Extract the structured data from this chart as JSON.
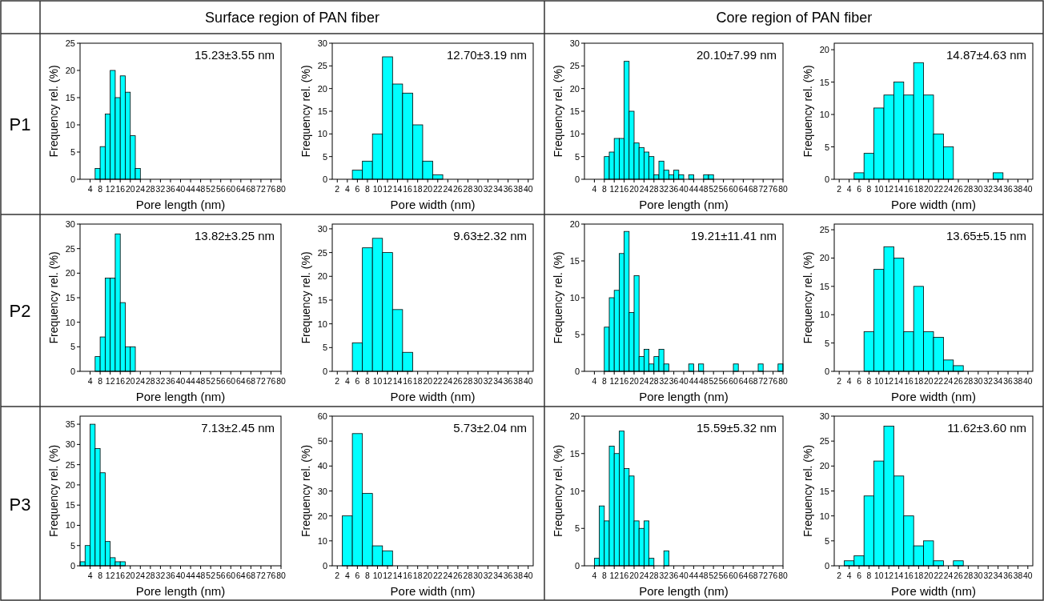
{
  "chart_data": [
    {
      "type": "histogram",
      "title": "Surface region of PAN fiber",
      "subtitle": "P1",
      "xlabel": "Pore length (nm)",
      "ylabel": "Frequency rel. (%)",
      "annotations": [
        "15.23±3.55 nm"
      ],
      "color": "#00ffff",
      "bins": [
        6,
        8,
        10,
        12,
        14,
        16,
        18,
        20,
        22,
        24
      ],
      "values": [
        2,
        6,
        12,
        20,
        15,
        19,
        16,
        8,
        2
      ],
      "xlim": [
        0,
        80
      ],
      "xticks": [
        4,
        8,
        12,
        16,
        20,
        24,
        28,
        32,
        36,
        40,
        44,
        48,
        52,
        56,
        60,
        64,
        68,
        72,
        76,
        80
      ],
      "ylim": [
        0,
        25
      ],
      "yticks": [
        0,
        5,
        10,
        15,
        20,
        25
      ]
    },
    {
      "type": "histogram",
      "xlabel": "Pore width (nm)",
      "ylabel": "Frequency rel. (%)",
      "annotations": [
        "12.70±3.19 nm"
      ],
      "color": "#00ffff",
      "bins": [
        5,
        7,
        9,
        11,
        13,
        15,
        17,
        19,
        21,
        23
      ],
      "values": [
        2,
        4,
        10,
        27,
        21,
        19,
        12,
        4,
        1
      ],
      "xlim": [
        1,
        41
      ],
      "xticks": [
        2,
        4,
        6,
        8,
        10,
        12,
        14,
        16,
        18,
        20,
        22,
        24,
        26,
        28,
        30,
        32,
        34,
        36,
        38,
        40
      ],
      "ylim": [
        0,
        30
      ],
      "yticks": [
        0,
        5,
        10,
        15,
        20,
        25,
        30
      ]
    },
    {
      "type": "histogram",
      "title": "Core region of PAN fiber",
      "xlabel": "Pore length (nm)",
      "ylabel": "Frequency rel. (%)",
      "annotations": [
        "20.10±7.99 nm"
      ],
      "color": "#00ffff",
      "bins": [
        8,
        10,
        12,
        14,
        16,
        18,
        20,
        22,
        24,
        26,
        28,
        30,
        32,
        34,
        36,
        38,
        40,
        42,
        44,
        46,
        48,
        50,
        52
      ],
      "values": [
        5,
        6,
        9,
        9,
        26,
        15,
        8,
        7,
        6,
        5,
        1,
        4,
        2,
        1,
        2,
        1,
        0,
        1,
        0,
        0,
        1,
        1
      ],
      "xlim": [
        0,
        80
      ],
      "xticks": [
        4,
        8,
        12,
        16,
        20,
        24,
        28,
        32,
        36,
        40,
        44,
        48,
        52,
        56,
        60,
        64,
        68,
        72,
        76,
        80
      ],
      "ylim": [
        0,
        30
      ],
      "yticks": [
        0,
        5,
        10,
        15,
        20,
        25,
        30
      ]
    },
    {
      "type": "histogram",
      "xlabel": "Pore width (nm)",
      "ylabel": "Frequency rel. (%)",
      "annotations": [
        "14.87±4.63 nm"
      ],
      "color": "#00ffff",
      "bins": [
        5,
        7,
        9,
        11,
        13,
        15,
        17,
        19,
        21,
        23,
        25,
        27,
        29,
        31,
        33,
        35
      ],
      "values": [
        1,
        4,
        11,
        13,
        15,
        13,
        18,
        13,
        7,
        5,
        0,
        0,
        0,
        0,
        1
      ],
      "xlim": [
        1,
        41
      ],
      "xticks": [
        2,
        4,
        6,
        8,
        10,
        12,
        14,
        16,
        18,
        20,
        22,
        24,
        26,
        28,
        30,
        32,
        34,
        36,
        38,
        40
      ],
      "ylim": [
        0,
        21
      ],
      "yticks": [
        0,
        5,
        10,
        15,
        20
      ]
    },
    {
      "type": "histogram",
      "subtitle": "P2",
      "xlabel": "Pore length (nm)",
      "ylabel": "Frequency rel. (%)",
      "annotations": [
        "13.82±3.25 nm"
      ],
      "color": "#00ffff",
      "bins": [
        6,
        8,
        10,
        12,
        14,
        16,
        18,
        20,
        22
      ],
      "values": [
        3,
        7,
        19,
        19,
        28,
        14,
        5,
        5
      ],
      "xlim": [
        0,
        80
      ],
      "xticks": [
        4,
        8,
        12,
        16,
        20,
        24,
        28,
        32,
        36,
        40,
        44,
        48,
        52,
        56,
        60,
        64,
        68,
        72,
        76,
        80
      ],
      "ylim": [
        0,
        30
      ],
      "yticks": [
        0,
        5,
        10,
        15,
        20,
        25,
        30
      ]
    },
    {
      "type": "histogram",
      "xlabel": "Pore width (nm)",
      "ylabel": "Frequency rel. (%)",
      "annotations": [
        "9.63±2.32 nm"
      ],
      "color": "#00ffff",
      "bins": [
        5,
        7,
        9,
        11,
        13,
        15,
        17
      ],
      "values": [
        6,
        26,
        28,
        25,
        13,
        4
      ],
      "xlim": [
        1,
        41
      ],
      "xticks": [
        2,
        4,
        6,
        8,
        10,
        12,
        14,
        16,
        18,
        20,
        22,
        24,
        26,
        28,
        30,
        32,
        34,
        36,
        38,
        40
      ],
      "ylim": [
        0,
        31
      ],
      "yticks": [
        0,
        5,
        10,
        15,
        20,
        25,
        30
      ]
    },
    {
      "type": "histogram",
      "xlabel": "Pore length (nm)",
      "ylabel": "Frequency rel. (%)",
      "annotations": [
        "19.21±11.41 nm"
      ],
      "color": "#00ffff",
      "bins": [
        8,
        10,
        12,
        14,
        16,
        18,
        20,
        22,
        24,
        26,
        28,
        30,
        32,
        34,
        36,
        38,
        40,
        42,
        44,
        46,
        48,
        50,
        52,
        54,
        56,
        58,
        60,
        62,
        64,
        66,
        68,
        70,
        72,
        74,
        76,
        78,
        80
      ],
      "values": [
        6,
        10,
        11,
        16,
        19,
        8,
        13,
        2,
        3,
        1,
        2,
        3,
        1,
        0,
        0,
        0,
        0,
        1,
        0,
        1,
        0,
        0,
        0,
        0,
        0,
        0,
        1,
        0,
        0,
        0,
        0,
        1,
        0,
        0,
        0,
        1
      ],
      "xlim": [
        0,
        80
      ],
      "xticks": [
        4,
        8,
        12,
        16,
        20,
        24,
        28,
        32,
        36,
        40,
        44,
        48,
        52,
        56,
        60,
        64,
        68,
        72,
        76,
        80
      ],
      "ylim": [
        0,
        20
      ],
      "yticks": [
        0,
        5,
        10,
        15,
        20
      ]
    },
    {
      "type": "histogram",
      "xlabel": "Pore width (nm)",
      "ylabel": "Frequency rel. (%)",
      "annotations": [
        "13.65±5.15 nm"
      ],
      "color": "#00ffff",
      "bins": [
        7,
        9,
        11,
        13,
        15,
        17,
        19,
        21,
        23,
        25,
        27
      ],
      "values": [
        7,
        18,
        22,
        20,
        7,
        15,
        7,
        6,
        2,
        1
      ],
      "xlim": [
        1,
        41
      ],
      "xticks": [
        2,
        4,
        6,
        8,
        10,
        12,
        14,
        16,
        18,
        20,
        22,
        24,
        26,
        28,
        30,
        32,
        34,
        36,
        38,
        40
      ],
      "ylim": [
        0,
        26
      ],
      "yticks": [
        0,
        5,
        10,
        15,
        20,
        25
      ]
    },
    {
      "type": "histogram",
      "subtitle": "P3",
      "xlabel": "Pore length (nm)",
      "ylabel": "Frequency rel. (%)",
      "annotations": [
        "7.13±2.45 nm"
      ],
      "color": "#00ffff",
      "bins": [
        0,
        2,
        4,
        6,
        8,
        10,
        12,
        14,
        16,
        18
      ],
      "values": [
        1,
        5,
        35,
        29,
        23,
        6,
        2,
        1,
        1
      ],
      "xlim": [
        0,
        80
      ],
      "xticks": [
        4,
        8,
        12,
        16,
        20,
        24,
        28,
        32,
        36,
        40,
        44,
        48,
        52,
        56,
        60,
        64,
        68,
        72,
        76,
        80
      ],
      "ylim": [
        0,
        37
      ],
      "yticks": [
        0,
        5,
        10,
        15,
        20,
        25,
        30,
        35
      ]
    },
    {
      "type": "histogram",
      "xlabel": "Pore width (nm)",
      "ylabel": "Frequency rel. (%)",
      "annotations": [
        "5.73±2.04 nm"
      ],
      "color": "#00ffff",
      "bins": [
        3,
        5,
        7,
        9,
        11,
        13
      ],
      "values": [
        20,
        53,
        29,
        8,
        6
      ],
      "xlim": [
        1,
        41
      ],
      "xticks": [
        2,
        4,
        6,
        8,
        10,
        12,
        14,
        16,
        18,
        20,
        22,
        24,
        26,
        28,
        30,
        32,
        34,
        36,
        38,
        40
      ],
      "ylim": [
        0,
        60
      ],
      "yticks": [
        0,
        10,
        20,
        30,
        40,
        50,
        60
      ]
    },
    {
      "type": "histogram",
      "xlabel": "Pore length (nm)",
      "ylabel": "Frequency rel. (%)",
      "annotations": [
        "15.59±5.32 nm"
      ],
      "color": "#00ffff",
      "bins": [
        4,
        6,
        8,
        10,
        12,
        14,
        16,
        18,
        20,
        22,
        24,
        26,
        28,
        30,
        32,
        34
      ],
      "values": [
        1,
        8,
        6,
        16,
        15,
        18,
        13,
        12,
        6,
        5,
        6,
        1,
        0,
        0,
        2
      ],
      "xlim": [
        0,
        80
      ],
      "xticks": [
        4,
        8,
        12,
        16,
        20,
        24,
        28,
        32,
        36,
        40,
        44,
        48,
        52,
        56,
        60,
        64,
        68,
        72,
        76,
        80
      ],
      "ylim": [
        0,
        20
      ],
      "yticks": [
        0,
        5,
        10,
        15,
        20
      ]
    },
    {
      "type": "histogram",
      "xlabel": "Pore width (nm)",
      "ylabel": "Frequency rel. (%)",
      "annotations": [
        "11.62±3.60 nm"
      ],
      "color": "#00ffff",
      "bins": [
        3,
        5,
        7,
        9,
        11,
        13,
        15,
        17,
        19,
        21,
        23,
        25,
        27
      ],
      "values": [
        1,
        2,
        14,
        21,
        28,
        18,
        10,
        4,
        5,
        1,
        0,
        1
      ],
      "xlim": [
        1,
        41
      ],
      "xticks": [
        2,
        4,
        6,
        8,
        10,
        12,
        14,
        16,
        18,
        20,
        22,
        24,
        26,
        28,
        30,
        32,
        34,
        36,
        38,
        40
      ],
      "ylim": [
        0,
        30
      ],
      "yticks": [
        0,
        5,
        10,
        15,
        20,
        25,
        30
      ]
    }
  ]
}
